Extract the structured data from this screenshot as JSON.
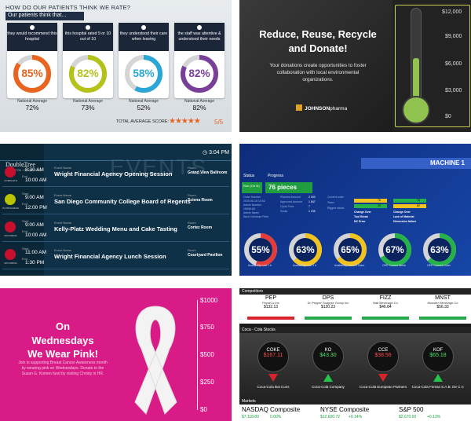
{
  "p1": {
    "header": "HOW DO OUR PATIENTS THINK WE RATE?",
    "subheader": "Our patients think that...",
    "cards": [
      {
        "question": "they would recommend this hospital",
        "value": "85%",
        "pct": 85,
        "color": "#e8641f",
        "avg_label": "National Average",
        "avg": "72%"
      },
      {
        "question": "this hospital rated 9 or 10 out of 10",
        "value": "82%",
        "pct": 82,
        "color": "#b5c21a",
        "avg_label": "National Average",
        "avg": "73%"
      },
      {
        "question": "they understood their care when leaving",
        "value": "58%",
        "pct": 58,
        "color": "#2aa7d6",
        "avg_label": "National Average",
        "avg": "52%"
      },
      {
        "question": "the staff was attentive & understood their needs",
        "value": "82%",
        "pct": 82,
        "color": "#7a3f99",
        "avg_label": "National Average",
        "avg": "82%"
      }
    ],
    "score_label": "TOTAL AVERAGE SCORE:",
    "stars": "★★★★★",
    "score": "5/5"
  },
  "p2": {
    "title": "Reduce, Reuse, Recycle and Donate!",
    "body": "Your donations create opportunities to foster collaboration with local environmental organizations.",
    "logo_bold": "JOHNSON",
    "logo_light": "pharma",
    "ticks": [
      "$12,000",
      "$9,000",
      "$6,000",
      "$3,000",
      "$0"
    ],
    "fill_fraction": 0.45,
    "accent": "#8fc24f"
  },
  "p3": {
    "brand": "DoubleTree",
    "brand_sub": "BY HILTON · DOWNTOWN",
    "bg_word": "EVENTS",
    "clock": "3:04 PM",
    "events": [
      {
        "status": "COMPLETE",
        "start_label": "Start",
        "start": "8:30 AM",
        "end_label": "End",
        "end": "10:00 AM",
        "name_label": "Event Name",
        "name": "Wright Financial Agency Opening Session",
        "room_label": "Room",
        "room": "Grand View Ballroom",
        "state": "red"
      },
      {
        "status": "IN PROGRESS",
        "start_label": "Start",
        "start": "9:00 AM",
        "end_label": "End",
        "end": "12:00 PM",
        "name_label": "Event Name",
        "name": "San Diego Community College Board of Regents",
        "room_label": "Room",
        "room": "Sciena Room",
        "state": "yellow"
      },
      {
        "status": "UPCOMING",
        "start_label": "Start",
        "start": "9:00 AM",
        "end_label": "End",
        "end": "10:00 AM",
        "name_label": "Event Name",
        "name": "Kelly-Platz Wedding Menu and Cake Tasting",
        "room_label": "Room",
        "room": "Cortez Room",
        "state": "red"
      },
      {
        "status": "UPCOMING",
        "start_label": "Start",
        "start": "11:00 AM",
        "end_label": "End",
        "end": "1:30 PM",
        "name_label": "Event Name",
        "name": "Wright Financial Agency Lunch Session",
        "room_label": "Room",
        "room": "Courtyard Pavilion",
        "state": "red"
      }
    ]
  },
  "p4": {
    "machine": "MACHINE 1",
    "status_label": "Status",
    "progress_label": "Progress",
    "status_value": "Run (On it!)",
    "pieces": "76 pieces",
    "info_labels": [
      "Order Number",
      "2020-06-18 10:02",
      "Article Number",
      "16598-65",
      "Article Name",
      "Wool Cellulose Fiber"
    ],
    "info_labels2": [
      "Planned Amount",
      "Approved Amount",
      "Cycle Time",
      "Scrap"
    ],
    "info_values2": [
      "2 000",
      "1 847",
      "7",
      "1 235"
    ],
    "info_labels3": [
      "Current order",
      "Team",
      "Rigged status"
    ],
    "mid_tags": [
      "Change Over",
      "Tool Break",
      "NC Error"
    ],
    "right_tags": [
      "Change Over",
      "Lack of Material",
      "Dimension failure"
    ],
    "bar_values": [
      "76",
      "33"
    ],
    "bar_values2": [
      "76",
      "82"
    ],
    "gauges": [
      {
        "value": "55%",
        "pct": 55,
        "label": "Availability Last 1 h",
        "color": "#e23c3c"
      },
      {
        "value": "63%",
        "pct": 63,
        "label": "Availability Last 3 h",
        "color": "#f2c21f"
      },
      {
        "value": "65%",
        "pct": 65,
        "label": "Availability Current Team",
        "color": "#f2c21f"
      },
      {
        "value": "67%",
        "pct": 67,
        "label": "OEE Current Week",
        "color": "#25b24a"
      },
      {
        "value": "63%",
        "pct": 63,
        "label": "OEE Current Order",
        "color": "#25b24a"
      }
    ]
  },
  "p5": {
    "title": "On Wednesdays We Wear Pink!",
    "body": "Join in supporting Breast Cancer Awareness month by wearing pink on Wednesdays. Donate to the Susan G. Komen fund by visiting Christy in HR.",
    "ticks": [
      "$1000",
      "$750",
      "$500",
      "$250",
      "$0"
    ],
    "accent": "#d81b87"
  },
  "p6": {
    "competitors_label": "Competitors",
    "competitors": [
      {
        "symbol": "PEP",
        "name": "PepsiCo Inc",
        "price": "$132.13",
        "up": false
      },
      {
        "symbol": "DPS",
        "name": "Dr Pepper Snapple Group Inc",
        "price": "$120.23",
        "up": true
      },
      {
        "symbol": "FIZZ",
        "name": "Natl Beverage Co",
        "price": "$46.84",
        "up": true
      },
      {
        "symbol": "MNST",
        "name": "Monster Beverage Co",
        "price": "$56.33",
        "up": true
      }
    ],
    "stocks_label": "Coca - Cola Stocks",
    "stocks": [
      {
        "symbol": "COKE",
        "price": "$167.11",
        "name": "Coca-Cola Bot Cons",
        "up": false
      },
      {
        "symbol": "KO",
        "price": "$43.30",
        "name": "Coca-Cola Company",
        "up": true
      },
      {
        "symbol": "CCE",
        "price": "$38.56",
        "name": "Coca-Cola European Partners",
        "up": false
      },
      {
        "symbol": "KOF",
        "price": "$65.18",
        "name": "Coca-Cola Femsa S.A.B. De C.V.",
        "up": true
      }
    ],
    "markets_label": "Markets",
    "markets": [
      {
        "name": "NASDAQ Composite",
        "value": "$7,118.89",
        "change": "0.00%"
      },
      {
        "name": "NYSE Composite",
        "value": "$12,600.72",
        "change": "+0.14%"
      },
      {
        "name": "S&P 500",
        "value": "$2,670.00",
        "change": "+0.13%"
      }
    ]
  }
}
